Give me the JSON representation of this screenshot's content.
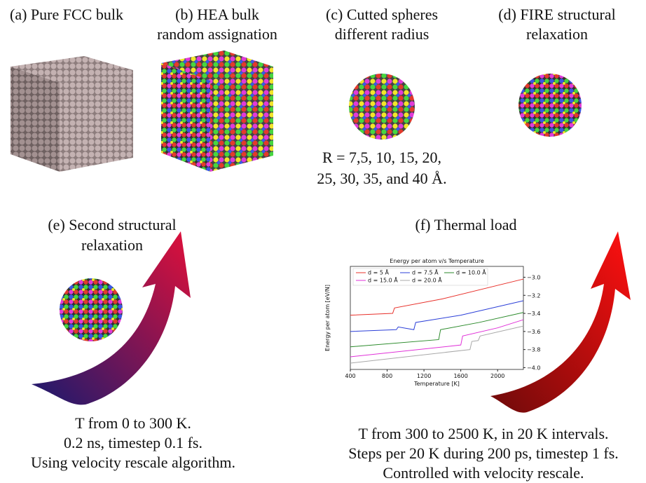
{
  "panels": {
    "a": {
      "lines": [
        "(a) Pure FCC bulk"
      ]
    },
    "b": {
      "lines": [
        "(b) HEA bulk",
        "random assignation"
      ]
    },
    "c": {
      "lines": [
        "(c) Cutted spheres",
        "different radius"
      ],
      "notes": [
        "R = 7,5, 10, 15, 20,",
        "25, 30, 35, and 40 Å."
      ]
    },
    "d": {
      "lines": [
        "(d) FIRE structural",
        "relaxation"
      ]
    },
    "e": {
      "lines": [
        "(e) Second structural",
        "relaxation"
      ],
      "notes": [
        "T from 0 to 300 K.",
        "0.2 ns, timestep 0.1 fs.",
        "Using velocity rescale algorithm."
      ]
    },
    "f": {
      "lines": [
        "(f) Thermal load"
      ],
      "notes": [
        "T from 300 to 2500 K, in 20 K intervals.",
        "Steps per 20 K during 200 ps, timestep 1 fs.",
        "Controlled with velocity rescale."
      ]
    }
  },
  "chart_data": {
    "type": "line",
    "title": "Energy per atom v/s Temperature",
    "x_label": "Temperature [K]",
    "y_label": "Energy per atom [eV/N]",
    "xlim": [
      400,
      2280
    ],
    "xticks": [
      400,
      800,
      1200,
      1600,
      2000
    ],
    "ylim": [
      -4.02,
      -2.88
    ],
    "yticks": [
      {
        "value": -4.0,
        "label": "−4.0"
      },
      {
        "value": -3.8,
        "label": "−3.8"
      },
      {
        "value": -3.6,
        "label": "−3.6"
      },
      {
        "value": -3.4,
        "label": "−3.4"
      },
      {
        "value": -3.2,
        "label": "−3.2"
      },
      {
        "value": -3.0,
        "label": "−3.0"
      }
    ],
    "series": [
      {
        "name": "d = 5 Å",
        "color": "#e8302a",
        "x": [
          400,
          860,
          880,
          1400,
          2280
        ],
        "values": [
          -3.42,
          -3.4,
          -3.34,
          -3.24,
          -3.02
        ]
      },
      {
        "name": "d = 7.5 Å",
        "color": "#2b3fd8",
        "x": [
          400,
          900,
          920,
          1090,
          1110,
          1600,
          2280
        ],
        "values": [
          -3.6,
          -3.58,
          -3.55,
          -3.58,
          -3.5,
          -3.42,
          -3.26
        ]
      },
      {
        "name": "d = 10.0 Å",
        "color": "#2a8a2a",
        "x": [
          400,
          1360,
          1380,
          1800,
          2280
        ],
        "values": [
          -3.77,
          -3.69,
          -3.58,
          -3.5,
          -3.39
        ]
      },
      {
        "name": "d = 15.0 Å",
        "color": "#e030d8",
        "x": [
          400,
          1600,
          1620,
          2000,
          2280
        ],
        "values": [
          -3.88,
          -3.75,
          -3.65,
          -3.56,
          -3.47
        ]
      },
      {
        "name": "d = 20.0 Å",
        "color": "#a8a8a8",
        "x": [
          400,
          1700,
          1720,
          1790,
          1810,
          2280
        ],
        "values": [
          -3.95,
          -3.8,
          -3.71,
          -3.7,
          -3.65,
          -3.54
        ]
      }
    ]
  }
}
